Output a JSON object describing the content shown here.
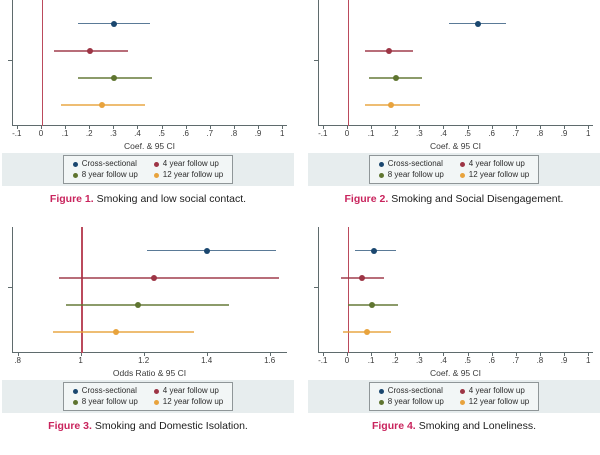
{
  "colors": {
    "reference_line": "#bb4a5c",
    "axis": "#5f6b6d",
    "band_background": "#e7edee",
    "legend_border": "#8f9698",
    "legend_background": "#f2f6f6",
    "caption_accent": "#c9245d",
    "navy": "#1a476f",
    "maroon": "#9d3545",
    "olive": "#5f7530",
    "orange": "#e8a33d"
  },
  "chart_data": [
    {
      "type": "scatter",
      "subtype": "forest-ci",
      "title": "Figure 1. Smoking and low social contact.",
      "caption_label": "Figure 1.",
      "caption_text": "Smoking and low social contact.",
      "xlabel": "Coef. & 95 CI",
      "ylabel": "",
      "xlim": [
        -0.12,
        1.02
      ],
      "ref_line_x": 0,
      "grid": false,
      "legend_position": "bottom",
      "xticks": [
        {
          "v": -0.1,
          "label": "-.1"
        },
        {
          "v": 0,
          "label": "0"
        },
        {
          "v": 0.1,
          "label": ".1"
        },
        {
          "v": 0.2,
          "label": ".2"
        },
        {
          "v": 0.3,
          "label": ".3"
        },
        {
          "v": 0.4,
          "label": ".4"
        },
        {
          "v": 0.5,
          "label": ".5"
        },
        {
          "v": 0.6,
          "label": ".6"
        },
        {
          "v": 0.7,
          "label": ".7"
        },
        {
          "v": 0.8,
          "label": ".8"
        },
        {
          "v": 0.9,
          "label": ".9"
        },
        {
          "v": 1,
          "label": "1"
        }
      ],
      "series": [
        {
          "name": "Cross-sectional",
          "color": "#1a476f",
          "point": 0.3,
          "ci_low": 0.15,
          "ci_high": 0.45
        },
        {
          "name": "4 year follow up",
          "color": "#9d3545",
          "point": 0.2,
          "ci_low": 0.05,
          "ci_high": 0.36
        },
        {
          "name": "8 year follow up",
          "color": "#5f7530",
          "point": 0.3,
          "ci_low": 0.15,
          "ci_high": 0.46
        },
        {
          "name": "12 year follow up",
          "color": "#e8a33d",
          "point": 0.25,
          "ci_low": 0.08,
          "ci_high": 0.43
        }
      ]
    },
    {
      "type": "scatter",
      "subtype": "forest-ci",
      "title": "Figure 2. Smoking and Social Disengagement.",
      "caption_label": "Figure 2.",
      "caption_text": "Smoking and Social Disengagement.",
      "xlabel": "Coef. & 95 CI",
      "ylabel": "",
      "xlim": [
        -0.12,
        1.02
      ],
      "ref_line_x": 0,
      "grid": false,
      "legend_position": "bottom",
      "xticks": [
        {
          "v": -0.1,
          "label": "-.1"
        },
        {
          "v": 0,
          "label": "0"
        },
        {
          "v": 0.1,
          "label": ".1"
        },
        {
          "v": 0.2,
          "label": ".2"
        },
        {
          "v": 0.3,
          "label": ".3"
        },
        {
          "v": 0.4,
          "label": ".4"
        },
        {
          "v": 0.5,
          "label": ".5"
        },
        {
          "v": 0.6,
          "label": ".6"
        },
        {
          "v": 0.7,
          "label": ".7"
        },
        {
          "v": 0.8,
          "label": ".8"
        },
        {
          "v": 0.9,
          "label": ".9"
        },
        {
          "v": 1,
          "label": "1"
        }
      ],
      "series": [
        {
          "name": "Cross-sectional",
          "color": "#1a476f",
          "point": 0.54,
          "ci_low": 0.42,
          "ci_high": 0.66
        },
        {
          "name": "4 year follow up",
          "color": "#9d3545",
          "point": 0.17,
          "ci_low": 0.07,
          "ci_high": 0.27
        },
        {
          "name": "8 year follow up",
          "color": "#5f7530",
          "point": 0.2,
          "ci_low": 0.09,
          "ci_high": 0.31
        },
        {
          "name": "12 year follow up",
          "color": "#e8a33d",
          "point": 0.18,
          "ci_low": 0.07,
          "ci_high": 0.3
        }
      ]
    },
    {
      "type": "scatter",
      "subtype": "forest-ci",
      "title": "Figure 3. Smoking and Domestic Isolation.",
      "caption_label": "Figure 3.",
      "caption_text": "Smoking and Domestic Isolation.",
      "xlabel": "Odds Ratio & 95 CI",
      "ylabel": "",
      "xlim": [
        0.782,
        1.655
      ],
      "ref_line_x": 1,
      "grid": false,
      "legend_position": "bottom",
      "xticks": [
        {
          "v": 0.8,
          "label": ".8"
        },
        {
          "v": 1,
          "label": "1"
        },
        {
          "v": 1.2,
          "label": "1.2"
        },
        {
          "v": 1.4,
          "label": "1.4"
        },
        {
          "v": 1.6,
          "label": "1.6"
        }
      ],
      "series": [
        {
          "name": "Cross-sectional",
          "color": "#1a476f",
          "point": 1.4,
          "ci_low": 1.21,
          "ci_high": 1.62
        },
        {
          "name": "4 year follow up",
          "color": "#9d3545",
          "point": 1.23,
          "ci_low": 0.93,
          "ci_high": 1.63
        },
        {
          "name": "8 year follow up",
          "color": "#5f7530",
          "point": 1.18,
          "ci_low": 0.95,
          "ci_high": 1.47
        },
        {
          "name": "12 year follow up",
          "color": "#e8a33d",
          "point": 1.11,
          "ci_low": 0.91,
          "ci_high": 1.36
        }
      ]
    },
    {
      "type": "scatter",
      "subtype": "forest-ci",
      "title": "Figure 4. Smoking and Loneliness.",
      "caption_label": "Figure 4.",
      "caption_text": "Smoking and Loneliness.",
      "xlabel": "Coef. & 95 CI",
      "ylabel": "",
      "xlim": [
        -0.12,
        1.02
      ],
      "ref_line_x": 0,
      "grid": false,
      "legend_position": "bottom",
      "xticks": [
        {
          "v": -0.1,
          "label": "-.1"
        },
        {
          "v": 0,
          "label": "0"
        },
        {
          "v": 0.1,
          "label": ".1"
        },
        {
          "v": 0.2,
          "label": ".2"
        },
        {
          "v": 0.3,
          "label": ".3"
        },
        {
          "v": 0.4,
          "label": ".4"
        },
        {
          "v": 0.5,
          "label": ".5"
        },
        {
          "v": 0.6,
          "label": ".6"
        },
        {
          "v": 0.7,
          "label": ".7"
        },
        {
          "v": 0.8,
          "label": ".8"
        },
        {
          "v": 0.9,
          "label": ".9"
        },
        {
          "v": 1,
          "label": "1"
        }
      ],
      "series": [
        {
          "name": "Cross-sectional",
          "color": "#1a476f",
          "point": 0.11,
          "ci_low": 0.03,
          "ci_high": 0.2
        },
        {
          "name": "4 year follow up",
          "color": "#9d3545",
          "point": 0.06,
          "ci_low": -0.03,
          "ci_high": 0.15
        },
        {
          "name": "8 year follow up",
          "color": "#5f7530",
          "point": 0.1,
          "ci_low": 0.0,
          "ci_high": 0.21
        },
        {
          "name": "12 year follow up",
          "color": "#e8a33d",
          "point": 0.08,
          "ci_low": -0.02,
          "ci_high": 0.18
        }
      ]
    }
  ]
}
